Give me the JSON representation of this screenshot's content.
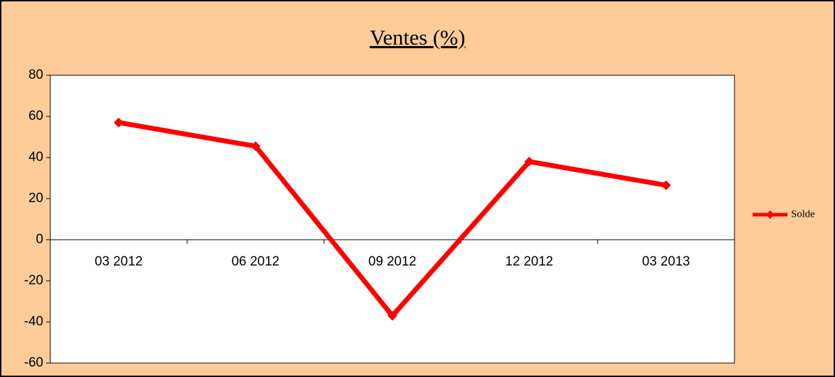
{
  "chart_data": {
    "type": "line",
    "title": "Ventes (%)",
    "categories": [
      "03 2012",
      "06 2012",
      "09 2012",
      "12 2012",
      "03 2013"
    ],
    "series": [
      {
        "name": "Solde",
        "color": "#ff0000",
        "values": [
          57,
          45.5,
          -37,
          38,
          26.5
        ]
      }
    ],
    "ylim": [
      -60,
      80
    ],
    "yticks": [
      -60,
      -40,
      -20,
      0,
      20,
      40,
      60,
      80
    ],
    "grid": false,
    "legend": "right",
    "background": "#ffcc99",
    "plot_background": "#ffffff"
  }
}
